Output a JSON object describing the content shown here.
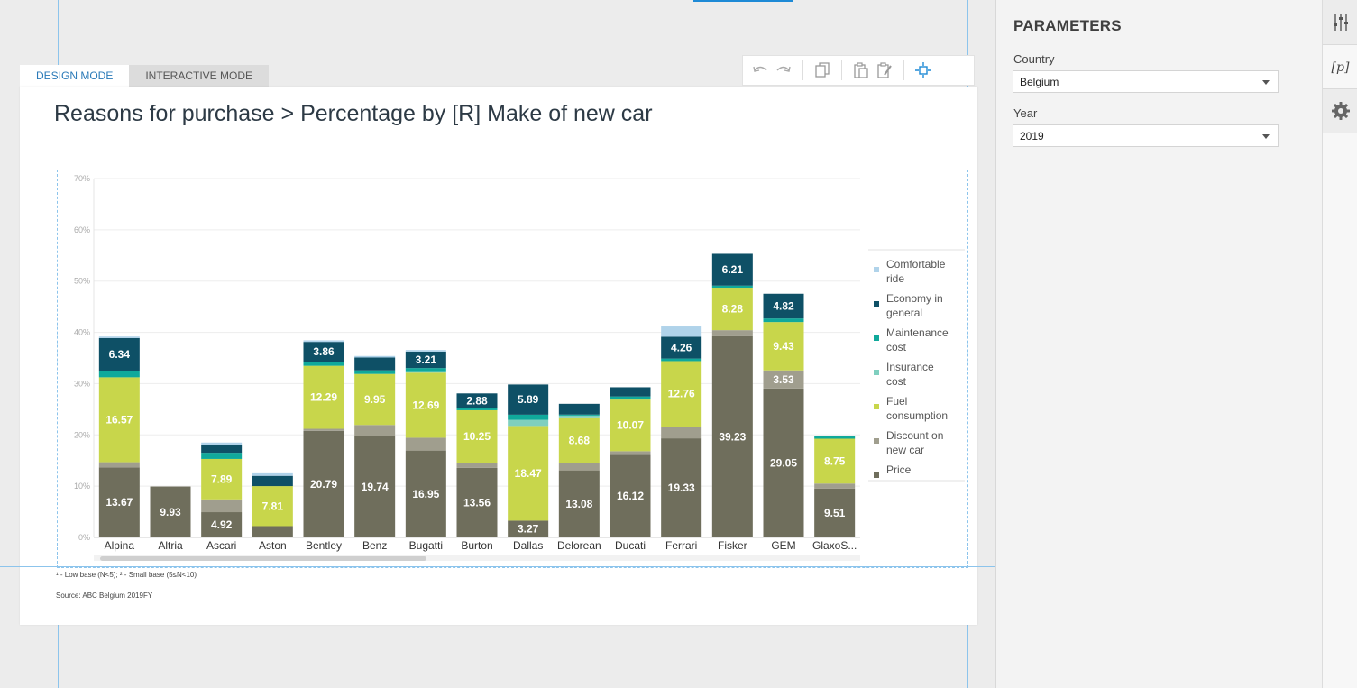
{
  "mode_tabs": [
    {
      "label": "DESIGN MODE",
      "active": true
    },
    {
      "label": "INTERACTIVE MODE",
      "active": false
    }
  ],
  "toolbar_icons": [
    "undo-icon",
    "redo-icon",
    "copy-icon",
    "paste-icon",
    "paste-format-icon",
    "select-frame-icon"
  ],
  "page": {
    "title": "Reasons for purchase > Percentage by [R] Make of new car",
    "footnote": "¹ - Low base (N<5);   ² - Small base (5≤N<10)",
    "source": "Source: ABC Belgium 2019FY"
  },
  "parameters": {
    "title": "PARAMETERS",
    "country_label": "Country",
    "country_value": "Belgium",
    "year_label": "Year",
    "year_value": "2019"
  },
  "rail": {
    "p_label": "[p]"
  },
  "chart_data": {
    "type": "bar",
    "stacked": true,
    "ylim": [
      0,
      70
    ],
    "yticks": [
      "0%",
      "10%",
      "20%",
      "30%",
      "40%",
      "50%",
      "60%",
      "70%"
    ],
    "grid": true,
    "legend_position": "right",
    "categories": [
      "Alpina",
      "Altria",
      "Ascari",
      "Aston",
      "Bentley",
      "Benz",
      "Bugatti",
      "Burton",
      "Dallas",
      "Delorean",
      "Ducati",
      "Ferrari",
      "Fisker",
      "GEM",
      "GlaxoS..."
    ],
    "series": [
      {
        "name": "Price",
        "color": "#6f6e5c",
        "values": [
          13.67,
          9.93,
          4.92,
          2.2,
          20.79,
          19.74,
          16.95,
          13.56,
          3.27,
          13.08,
          16.12,
          19.33,
          39.23,
          29.05,
          9.51
        ]
      },
      {
        "name": "Discount on new car",
        "color": "#a09e8e",
        "values": [
          1.0,
          0,
          2.5,
          0,
          0.4,
          2.2,
          2.5,
          1.0,
          0,
          1.5,
          0.7,
          2.3,
          1.2,
          3.53,
          1.0
        ]
      },
      {
        "name": "Fuel consumption",
        "color": "#c8d64b",
        "values": [
          16.57,
          0,
          7.89,
          7.81,
          12.29,
          9.95,
          12.69,
          10.25,
          18.47,
          8.68,
          10.07,
          12.76,
          8.28,
          9.43,
          8.75
        ]
      },
      {
        "name": "Insurance cost",
        "color": "#7fcfbf",
        "values": [
          0,
          0,
          0,
          0,
          0,
          0,
          0.3,
          0,
          1.2,
          0.5,
          0,
          0,
          0,
          0,
          0
        ]
      },
      {
        "name": "Maintenance cost",
        "color": "#10a99b",
        "values": [
          1.3,
          0,
          1.2,
          0,
          0.8,
          0.7,
          0.6,
          0.4,
          1.0,
          0.2,
          0.6,
          0.5,
          0.4,
          0.7,
          0.6
        ]
      },
      {
        "name": "Economy in general",
        "color": "#0e5066",
        "values": [
          6.34,
          0,
          1.6,
          2.0,
          3.86,
          2.5,
          3.21,
          2.88,
          5.89,
          2.1,
          1.8,
          4.26,
          6.21,
          4.82,
          0
        ]
      },
      {
        "name": "Comfortable ride",
        "color": "#b0d3ea",
        "values": [
          0.3,
          0,
          0.4,
          0.5,
          0.3,
          0.3,
          0.3,
          0,
          0,
          0,
          0,
          2.0,
          0,
          0,
          0
        ]
      }
    ],
    "data_labels": [
      {
        "category": "Alpina",
        "series": "Price",
        "text": "13.67"
      },
      {
        "category": "Alpina",
        "series": "Fuel consumption",
        "text": "16.57"
      },
      {
        "category": "Alpina",
        "series": "Economy in general",
        "text": "6.34"
      },
      {
        "category": "Altria",
        "series": "Price",
        "text": "9.93"
      },
      {
        "category": "Ascari",
        "series": "Price",
        "text": "4.92"
      },
      {
        "category": "Ascari",
        "series": "Fuel consumption",
        "text": "7.89"
      },
      {
        "category": "Aston",
        "series": "Fuel consumption",
        "text": "7.81"
      },
      {
        "category": "Bentley",
        "series": "Price",
        "text": "20.79"
      },
      {
        "category": "Bentley",
        "series": "Fuel consumption",
        "text": "12.29"
      },
      {
        "category": "Bentley",
        "series": "Economy in general",
        "text": "3.86"
      },
      {
        "category": "Benz",
        "series": "Price",
        "text": "19.74"
      },
      {
        "category": "Benz",
        "series": "Fuel consumption",
        "text": "9.95"
      },
      {
        "category": "Bugatti",
        "series": "Price",
        "text": "16.95"
      },
      {
        "category": "Bugatti",
        "series": "Fuel consumption",
        "text": "12.69"
      },
      {
        "category": "Bugatti",
        "series": "Economy in general",
        "text": "3.21"
      },
      {
        "category": "Burton",
        "series": "Price",
        "text": "13.56"
      },
      {
        "category": "Burton",
        "series": "Fuel consumption",
        "text": "10.25"
      },
      {
        "category": "Burton",
        "series": "Economy in general",
        "text": "2.88"
      },
      {
        "category": "Dallas",
        "series": "Price",
        "text": "3.27"
      },
      {
        "category": "Dallas",
        "series": "Fuel consumption",
        "text": "18.47"
      },
      {
        "category": "Dallas",
        "series": "Economy in general",
        "text": "5.89"
      },
      {
        "category": "Delorean",
        "series": "Price",
        "text": "13.08"
      },
      {
        "category": "Delorean",
        "series": "Fuel consumption",
        "text": "8.68"
      },
      {
        "category": "Ducati",
        "series": "Price",
        "text": "16.12"
      },
      {
        "category": "Ducati",
        "series": "Fuel consumption",
        "text": "10.07"
      },
      {
        "category": "Ferrari",
        "series": "Price",
        "text": "19.33"
      },
      {
        "category": "Ferrari",
        "series": "Fuel consumption",
        "text": "12.76"
      },
      {
        "category": "Ferrari",
        "series": "Economy in general",
        "text": "4.26"
      },
      {
        "category": "Fisker",
        "series": "Price",
        "text": "39.23"
      },
      {
        "category": "Fisker",
        "series": "Fuel consumption",
        "text": "8.28"
      },
      {
        "category": "Fisker",
        "series": "Economy in general",
        "text": "6.21"
      },
      {
        "category": "GEM",
        "series": "Price",
        "text": "29.05"
      },
      {
        "category": "GEM",
        "series": "Discount on new car",
        "text": "3.53"
      },
      {
        "category": "GEM",
        "series": "Fuel consumption",
        "text": "9.43"
      },
      {
        "category": "GEM",
        "series": "Economy in general",
        "text": "4.82"
      },
      {
        "category": "GlaxoS...",
        "series": "Price",
        "text": "9.51"
      },
      {
        "category": "GlaxoS...",
        "series": "Fuel consumption",
        "text": "8.75"
      }
    ],
    "legend": [
      {
        "label": "Comfortable ride",
        "color": "#b0d3ea"
      },
      {
        "label": "Economy in general",
        "color": "#0e5066"
      },
      {
        "label": "Maintenance cost",
        "color": "#10a99b"
      },
      {
        "label": "Insurance cost",
        "color": "#7fcfbf"
      },
      {
        "label": "Fuel consumption",
        "color": "#c8d64b"
      },
      {
        "label": "Discount on new car",
        "color": "#a09e8e"
      },
      {
        "label": "Price",
        "color": "#6f6e5c"
      }
    ]
  }
}
